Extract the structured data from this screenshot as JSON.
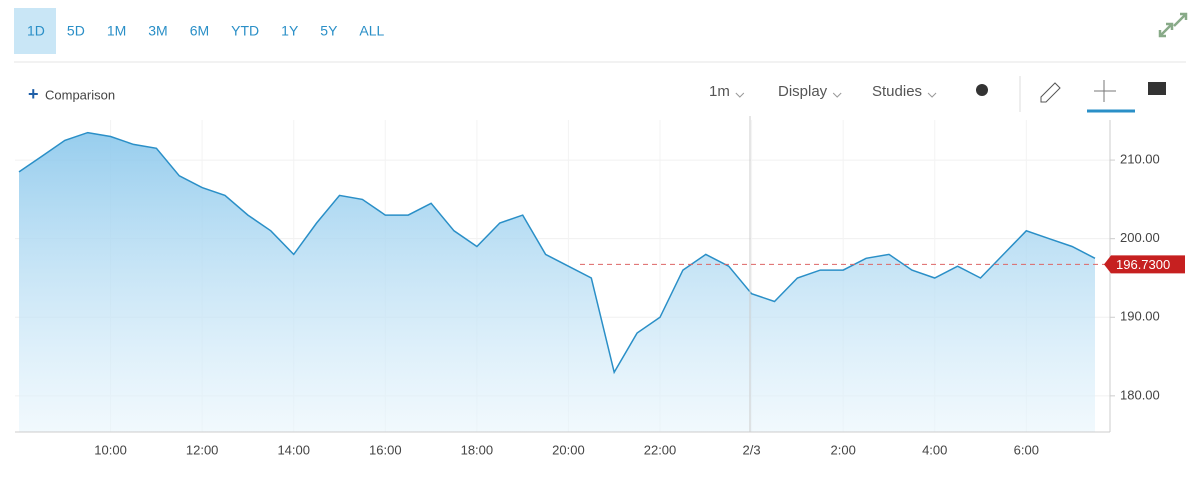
{
  "range_buttons": [
    "1D",
    "5D",
    "1M",
    "3M",
    "6M",
    "YTD",
    "1Y",
    "5Y",
    "ALL"
  ],
  "comparison": "Comparison",
  "toolbar": [
    "1m",
    "Display",
    "Studies"
  ],
  "chart_data": {
    "type": "area-line",
    "categories": [
      null,
      null,
      null,
      null,
      "10:00",
      null,
      null,
      null,
      "12:00",
      null,
      null,
      null,
      "14:00",
      null,
      null,
      null,
      "16:00",
      null,
      null,
      null,
      "18:00",
      null,
      null,
      null,
      "20:00",
      null,
      null,
      null,
      "22:00",
      null,
      null,
      null,
      "2/3",
      null,
      null,
      null,
      "2:00",
      null,
      null,
      null,
      "4:00",
      null,
      null,
      null,
      "6:00",
      null,
      null,
      null
    ],
    "series": [
      {
        "color": "#2a8fc7",
        "values": [
          208.5,
          210.5,
          212.5,
          213.5,
          213,
          212,
          211.5,
          208,
          206.5,
          205.5,
          203,
          201,
          198,
          202,
          205.5,
          205,
          203,
          203,
          204.5,
          201,
          199,
          202,
          203,
          198,
          196.5,
          195,
          183,
          188,
          190,
          196,
          198,
          196.5,
          193,
          192,
          195,
          196,
          196,
          197.5,
          198,
          196,
          195,
          196.5,
          195,
          198,
          201,
          200,
          199,
          197.5
        ]
      }
    ],
    "last_price": {
      "value": 196.73,
      "label": "196.7300"
    },
    "ylim": [
      175.4,
      215.1
    ],
    "yticks": [
      {
        "value": 180,
        "label": "180.00"
      },
      {
        "value": 190,
        "label": "190.00"
      },
      {
        "value": 200,
        "label": "200.00"
      },
      {
        "value": 210,
        "label": "210.00"
      }
    ],
    "grid": true
  }
}
